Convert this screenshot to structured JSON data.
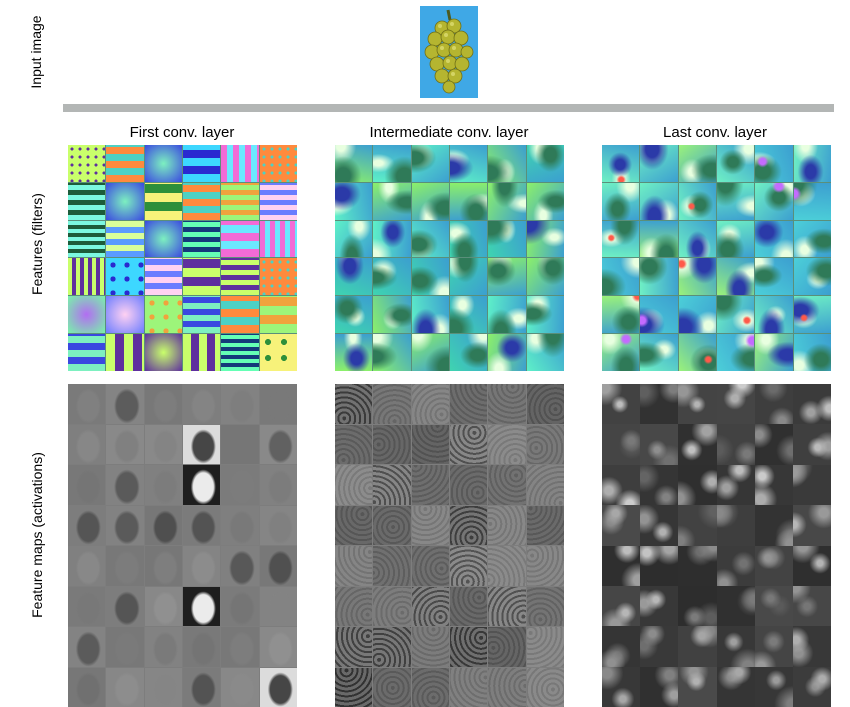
{
  "rows": {
    "input_label": "Input image",
    "filters_label": "Features (filters)",
    "maps_label": "Feature maps (activations)"
  },
  "columns": [
    {
      "label": "First conv. layer"
    },
    {
      "label": "Intermediate conv. layer"
    },
    {
      "label": "Last conv. layer"
    }
  ],
  "colors": {
    "divider": "#b3b6b5",
    "input_background": "#3fa8e6",
    "grape": "#b5b530"
  },
  "grid": {
    "filters": {
      "rows": 6,
      "cols": 6
    },
    "maps_first": {
      "rows": 8,
      "cols": 6
    },
    "maps_intermediate": {
      "rows": 8,
      "cols": 6
    },
    "maps_last": {
      "rows": 8,
      "cols": 6
    }
  }
}
